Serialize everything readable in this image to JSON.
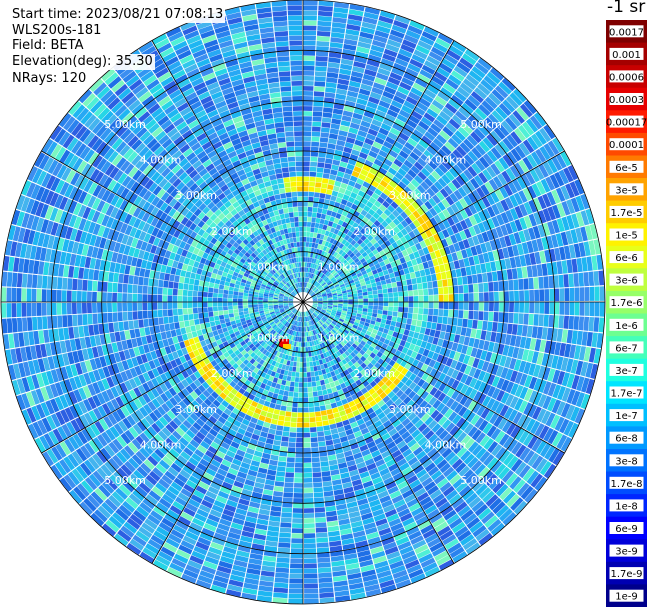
{
  "header": {
    "start_time": "Start time: 2023/08/21 07:08:13",
    "device": "WLS200s-181",
    "field": "Field: BETA",
    "elevation": "Elevation(deg): 35.30",
    "nrays": "NRays: 120"
  },
  "ppi": {
    "max_range_km": 6,
    "ring_spacing_km": 1,
    "n_rays": 120,
    "range_labels": [
      "1.00km",
      "2.00km",
      "3.00km",
      "4.00km",
      "5.00km"
    ],
    "label_color": "#ffffff",
    "grid_color": "#000000"
  },
  "colorbar": {
    "unit": "-1 sr",
    "labels": [
      "0.0017",
      "0.001",
      "0.0006",
      "0.0003",
      "0.00017",
      "0.0001",
      "6e-5",
      "3e-5",
      "1.7e-5",
      "1e-5",
      "6e-6",
      "3e-6",
      "1.7e-6",
      "1e-6",
      "6e-7",
      "3e-7",
      "1.7e-7",
      "1e-7",
      "6e-8",
      "3e-8",
      "1.7e-8",
      "1e-8",
      "6e-9",
      "3e-9",
      "1.7e-9",
      "1e-9"
    ],
    "colors": [
      "#7f0000",
      "#a50000",
      "#c80000",
      "#e60000",
      "#ff1a00",
      "#ff4a00",
      "#ff7a00",
      "#ffa300",
      "#ffcc00",
      "#fff200",
      "#e8ff1a",
      "#bfff3f",
      "#96ff68",
      "#6dff91",
      "#44ffba",
      "#1fffe0",
      "#00e5ff",
      "#00bfff",
      "#0099ff",
      "#0073ff",
      "#004dff",
      "#0026ff",
      "#0000ff",
      "#0000d9",
      "#0000b2",
      "#00008c"
    ]
  }
}
